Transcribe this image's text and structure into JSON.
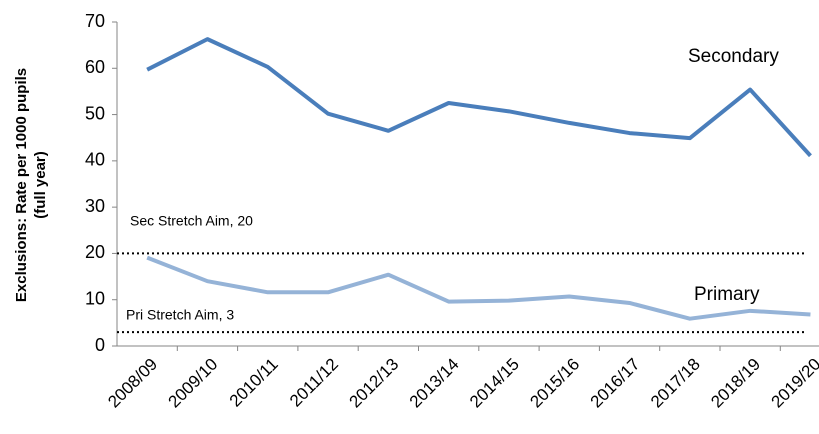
{
  "chart_data": {
    "type": "line",
    "y_label": [
      "Exclusions: Rate per 1000 pupils",
      "(full year)"
    ],
    "categories": [
      "2008/09",
      "2009/10",
      "2010/11",
      "2011/12",
      "2012/13",
      "2013/14",
      "2014/15",
      "2015/16",
      "2016/17",
      "2017/18",
      "2018/19",
      "2019/20"
    ],
    "series": [
      {
        "name": "Secondary",
        "color": "#4a7ebb",
        "values": [
          59.7,
          66.3,
          60.3,
          50.2,
          46.5,
          52.5,
          50.7,
          48.2,
          46.0,
          44.9,
          55.4,
          41.1
        ]
      },
      {
        "name": "Primary",
        "color": "#95b3d7",
        "values": [
          19.1,
          14.0,
          11.6,
          11.6,
          15.4,
          9.6,
          9.8,
          10.7,
          9.3,
          5.9,
          7.6,
          6.8
        ]
      }
    ],
    "reference_lines": [
      {
        "value": 20,
        "label": "Sec Stretch Aim, 20"
      },
      {
        "value": 3,
        "label": "Pri Stretch Aim, 3"
      }
    ],
    "ylim": [
      0,
      70
    ],
    "yticks": [
      0,
      10,
      20,
      30,
      40,
      50,
      60,
      70
    ]
  }
}
